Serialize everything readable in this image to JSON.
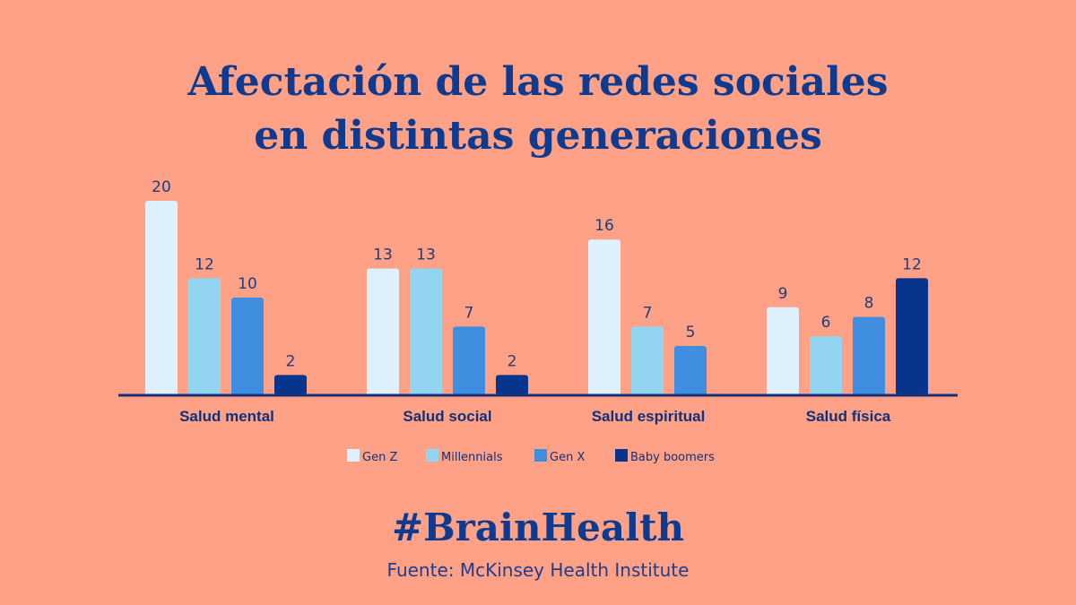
{
  "page": {
    "title_line1": "Afectación de las redes sociales",
    "title_line2": "en distintas generaciones",
    "hashtag": "#BrainHealth",
    "source": "Fuente: McKinsey Health Institute"
  },
  "colors": {
    "background": "#FEA186",
    "title": "#0F3A8E",
    "axis": "#15307A",
    "value_label": "#1F3D7A",
    "category_label": "#14307A"
  },
  "chart_data": {
    "type": "bar",
    "title": "Afectación de las redes sociales en distintas generaciones",
    "xlabel": "",
    "ylabel": "",
    "ylim": [
      0,
      20
    ],
    "grid": false,
    "legend_position": "bottom-center",
    "categories": [
      "Salud mental",
      "Salud social",
      "Salud espiritual",
      "Salud física"
    ],
    "series": [
      {
        "name": "Gen Z",
        "color": "#DDF0FB",
        "values": [
          20,
          13,
          16,
          9
        ]
      },
      {
        "name": "Millennials",
        "color": "#93D4F0",
        "values": [
          12,
          13,
          7,
          6
        ]
      },
      {
        "name": "Gen X",
        "color": "#3F8EE0",
        "values": [
          10,
          7,
          5,
          8
        ]
      },
      {
        "name": "Baby boomers",
        "color": "#07358E",
        "values": [
          2,
          2,
          null,
          12
        ]
      }
    ]
  }
}
